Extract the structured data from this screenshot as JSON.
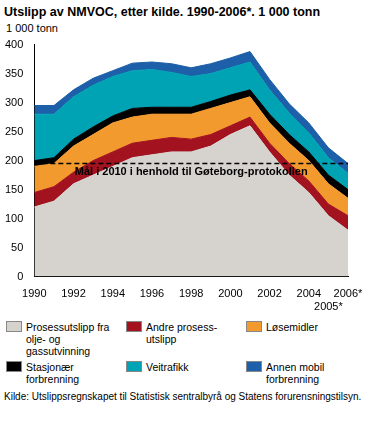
{
  "chart_data": {
    "type": "area",
    "title": "Utslipp av NMVOC, etter kilde. 1990-2006*. 1 000 tonn",
    "y_label": "1 000 tonn",
    "source": "Kilde: Utslippsregnskapet til Statistisk sentralbyrå og Statens forurensningstilsyn.",
    "categories": [
      "1990",
      null,
      "1992",
      null,
      "1994",
      null,
      "1996",
      null,
      "1998",
      null,
      "2000",
      null,
      "2002",
      null,
      "2004",
      "2005*",
      "2006*"
    ],
    "series": [
      {
        "name": "Prosessutslipp fra olje- og gassutvinning",
        "color": "#d6d3cf",
        "values": [
          120,
          130,
          160,
          175,
          190,
          205,
          210,
          215,
          215,
          225,
          245,
          260,
          215,
          175,
          145,
          105,
          80
        ]
      },
      {
        "name": "Andre prosess-utslipp",
        "color": "#a3121f",
        "values": [
          25,
          25,
          20,
          25,
          25,
          25,
          25,
          25,
          22,
          20,
          15,
          15,
          15,
          20,
          20,
          20,
          25
        ]
      },
      {
        "name": "Løsemidler",
        "color": "#f29a2e",
        "values": [
          45,
          40,
          45,
          45,
          50,
          45,
          45,
          40,
          43,
          45,
          40,
          35,
          35,
          35,
          35,
          35,
          30
        ]
      },
      {
        "name": "Stasjonær forbrenning",
        "color": "#000000",
        "values": [
          10,
          10,
          12,
          13,
          12,
          15,
          12,
          12,
          12,
          12,
          13,
          12,
          15,
          15,
          15,
          15,
          15
        ]
      },
      {
        "name": "Veitrafikk",
        "color": "#00a3b4",
        "values": [
          80,
          75,
          73,
          72,
          68,
          65,
          65,
          60,
          53,
          48,
          47,
          48,
          42,
          37,
          33,
          30,
          28
        ]
      },
      {
        "name": "Annen mobil forbrenning",
        "color": "#1d5fa8",
        "values": [
          15,
          15,
          12,
          12,
          10,
          13,
          13,
          15,
          15,
          17,
          17,
          18,
          18,
          16,
          17,
          17,
          17
        ]
      }
    ],
    "stacked": true,
    "ylim": [
      0,
      400
    ],
    "yticks": [
      0,
      50,
      100,
      150,
      200,
      250,
      300,
      350,
      400
    ],
    "grid": false,
    "legend": "bottom",
    "annotations": [
      {
        "text": "Mål i 2010 i henhold til Gøteborg-protokollen",
        "y": 195,
        "line_style": "dashed"
      }
    ]
  }
}
